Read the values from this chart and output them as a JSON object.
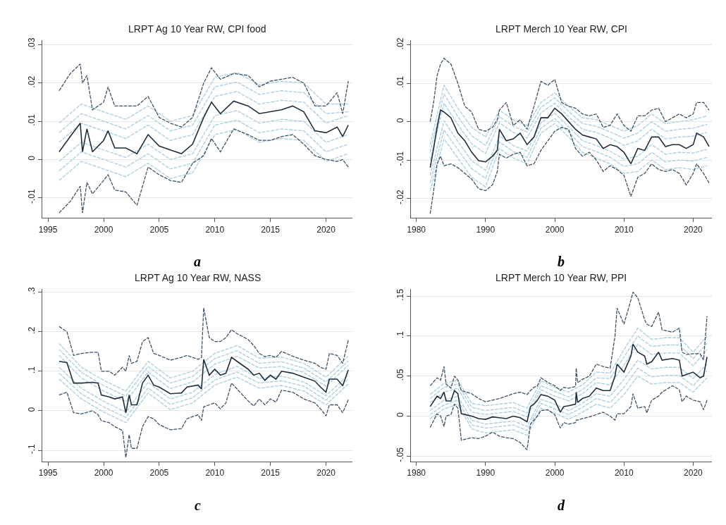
{
  "chart_data": [
    {
      "type": "line",
      "title": "LRPT Ag 10 Year RW, CPI food",
      "annotations": [
        "a"
      ],
      "grid": "y",
      "xlim": [
        1994.5,
        2022.4
      ],
      "xticks": [
        1995,
        2000,
        2005,
        2010,
        2015,
        2020
      ],
      "ylim": [
        -0.0153,
        0.0312
      ],
      "yticks": [
        {
          "value": -0.01,
          "label": "-.01"
        },
        0,
        {
          "value": 0.01,
          "label": ".01"
        },
        {
          "value": 0.02,
          "label": ".02"
        },
        {
          "value": 0.03,
          "label": ".03"
        }
      ],
      "x": [
        1996,
        1997,
        1997.9,
        1998.1,
        1998.5,
        1999,
        2000,
        2000.4,
        2001,
        2002,
        2003,
        2004,
        2005,
        2006,
        2007,
        2008,
        2009,
        2009.7,
        2010.5,
        2011.7,
        2013,
        2014,
        2015,
        2016,
        2017,
        2018,
        2019,
        2020,
        2021,
        2021.5,
        2022
      ],
      "series": [
        {
          "color": "#a7cde0",
          "line_style": "dashed",
          "x": [
            1996,
            1998,
            2000,
            2002,
            2004,
            2006,
            2008,
            2010,
            2012,
            2014,
            2016,
            2018,
            2020,
            2022
          ],
          "values": [
            0.0095,
            0.0145,
            0.0125,
            0.0105,
            0.014,
            0.01,
            0.0115,
            0.0215,
            0.0228,
            0.0195,
            0.0205,
            0.02,
            0.0145,
            0.0145
          ]
        },
        {
          "color": "#a7cde0",
          "line_style": "dashed",
          "x": [
            1996,
            1998,
            2000,
            2002,
            2004,
            2006,
            2008,
            2010,
            2012,
            2014,
            2016,
            2018,
            2020,
            2022
          ],
          "values": [
            0.007,
            0.012,
            0.01,
            0.008,
            0.0115,
            0.0075,
            0.009,
            0.019,
            0.0203,
            0.017,
            0.018,
            0.0175,
            0.012,
            0.0125
          ]
        },
        {
          "color": "#a7cde0",
          "line_style": "dashed",
          "x": [
            1996,
            1998,
            2000,
            2002,
            2004,
            2006,
            2008,
            2010,
            2012,
            2014,
            2016,
            2018,
            2020,
            2022
          ],
          "values": [
            0.0045,
            0.0095,
            0.0075,
            0.0055,
            0.009,
            0.005,
            0.0065,
            0.0165,
            0.0178,
            0.0145,
            0.0155,
            0.015,
            0.0095,
            0.0115
          ]
        },
        {
          "color": "#a7cde0",
          "line_style": "dashed",
          "x": [
            1996,
            1998,
            2000,
            2002,
            2004,
            2006,
            2008,
            2010,
            2012,
            2014,
            2016,
            2018,
            2020,
            2022
          ],
          "values": [
            -0.0005,
            0.0045,
            0.0025,
            0.0005,
            0.004,
            0,
            0.0015,
            0.0115,
            0.0128,
            0.0095,
            0.0105,
            0.01,
            0.0045,
            0.0065
          ]
        },
        {
          "color": "#a7cde0",
          "line_style": "dashed",
          "x": [
            1996,
            1998,
            2000,
            2002,
            2004,
            2006,
            2008,
            2010,
            2012,
            2014,
            2016,
            2018,
            2020,
            2022
          ],
          "values": [
            -0.003,
            0.002,
            0,
            -0.002,
            0.0015,
            -0.0025,
            -0.001,
            0.009,
            0.0103,
            0.007,
            0.008,
            0.0075,
            0.002,
            0.004
          ]
        },
        {
          "color": "#a7cde0",
          "line_style": "dashed",
          "x": [
            1996,
            1998,
            2000,
            2002,
            2004,
            2006,
            2008,
            2010,
            2012,
            2014,
            2016,
            2018,
            2020,
            2022
          ],
          "values": [
            -0.0055,
            -0.0005,
            -0.0025,
            -0.0045,
            -0.001,
            -0.005,
            -0.0035,
            0.0065,
            0.0078,
            0.0045,
            0.0055,
            0.005,
            -0.0005,
            0.0015
          ]
        },
        {
          "color": "#3d5266",
          "line_style": "dashed",
          "values": [
            0.018,
            0.0225,
            0.025,
            0.02,
            0.022,
            0.013,
            0.015,
            0.019,
            0.014,
            0.014,
            0.014,
            0.0165,
            0.011,
            0.0095,
            0.0085,
            0.011,
            0.02,
            0.024,
            0.021,
            0.0225,
            0.022,
            0.019,
            0.0205,
            0.021,
            0.0215,
            0.02,
            0.014,
            0.014,
            0.0175,
            0.012,
            0.0205
          ]
        },
        {
          "color": "#3d5266",
          "line_style": "dashed",
          "values": [
            -0.014,
            -0.011,
            -0.007,
            -0.014,
            -0.006,
            -0.009,
            -0.0055,
            -0.004,
            -0.008,
            -0.0085,
            -0.012,
            -0.002,
            -0.004,
            -0.0055,
            -0.006,
            -0.001,
            0.001,
            0.0055,
            0.002,
            0.008,
            0.0065,
            0.005,
            0.005,
            0.006,
            0.0065,
            0.004,
            0.001,
            0,
            -0.0005,
            0,
            -0.002
          ]
        },
        {
          "color": "#1f2d3d",
          "line_style": "solid",
          "values": [
            0.002,
            0.006,
            0.0095,
            0.002,
            0.008,
            0.002,
            0.005,
            0.0075,
            0.003,
            0.003,
            0.0015,
            0.0065,
            0.0035,
            0.0025,
            0.0015,
            0.004,
            0.011,
            0.015,
            0.012,
            0.0153,
            0.014,
            0.012,
            0.0125,
            0.013,
            0.014,
            0.0125,
            0.0075,
            0.007,
            0.0085,
            0.006,
            0.009
          ]
        }
      ]
    },
    {
      "type": "line",
      "title": "LRPT Merch 10 Year RW, CPI",
      "annotations": [
        "b"
      ],
      "grid": "y",
      "xlim": [
        1979.2,
        2022.7
      ],
      "xticks": [
        1980,
        1990,
        2000,
        2010,
        2020
      ],
      "ylim": [
        -0.0251,
        0.0212
      ],
      "yticks": [
        {
          "value": -0.02,
          "label": "-.02"
        },
        {
          "value": -0.01,
          "label": "-.01"
        },
        0,
        {
          "value": 0.01,
          "label": ".01"
        },
        {
          "value": 0.02,
          "label": ".02"
        }
      ],
      "x": [
        1982,
        1982.5,
        1983,
        1983.5,
        1984,
        1985,
        1986,
        1987,
        1988,
        1989,
        1990,
        1991,
        1991.7,
        1992,
        1993,
        1994,
        1995,
        1996,
        1997,
        1998,
        1999,
        2000,
        2001,
        2002,
        2003,
        2004,
        2005,
        2006,
        2007,
        2008,
        2009,
        2010,
        2011,
        2012,
        2013,
        2014,
        2015,
        2016,
        2017,
        2018,
        2019,
        2020,
        2020.5,
        2021.5,
        2022.3
      ],
      "series": [
        {
          "color": "#a7cde0",
          "line_style": "dashed",
          "x": [
            1982,
            1984,
            1986,
            1988,
            1990,
            1992,
            1994,
            1996,
            1998,
            2000,
            2002,
            2004,
            2006,
            2008,
            2010,
            2012,
            2014,
            2016,
            2018,
            2020,
            2022
          ],
          "values": [
            -0.006,
            0.0095,
            0.0035,
            -0.0015,
            -0.004,
            0.003,
            0.0005,
            -0.001,
            0.005,
            0.0075,
            0.004,
            0.001,
            0.0005,
            -0.001,
            -0.0025,
            -0.001,
            0.002,
            -0.0005,
            0,
            0.0005,
            0.0015
          ]
        },
        {
          "color": "#a7cde0",
          "line_style": "dashed",
          "x": [
            1982,
            1984,
            1986,
            1988,
            1990,
            1992,
            1994,
            1996,
            1998,
            2000,
            2002,
            2004,
            2006,
            2008,
            2010,
            2012,
            2014,
            2016,
            2018,
            2020,
            2022
          ],
          "values": [
            -0.008,
            0.0072,
            0.0013,
            -0.0037,
            -0.0062,
            0.0013,
            -0.0012,
            -0.0027,
            0.0037,
            0.0062,
            0.0027,
            -0.0005,
            -0.0012,
            -0.0027,
            -0.0043,
            -0.003,
            0,
            -0.0025,
            -0.002,
            -0.0017,
            -0.0007
          ]
        },
        {
          "color": "#a7cde0",
          "line_style": "dashed",
          "x": [
            1982,
            1984,
            1986,
            1988,
            1990,
            1992,
            1994,
            1996,
            1998,
            2000,
            2002,
            2004,
            2006,
            2008,
            2010,
            2012,
            2014,
            2016,
            2018,
            2020,
            2022
          ],
          "values": [
            -0.01,
            0.0048,
            -0.0008,
            -0.0058,
            -0.0083,
            -0.0003,
            -0.0028,
            -0.0043,
            0.0023,
            0.0048,
            0.0013,
            -0.002,
            -0.0028,
            -0.0043,
            -0.0062,
            -0.005,
            -0.002,
            -0.0045,
            -0.004,
            -0.0038,
            -0.0028
          ]
        },
        {
          "color": "#a7cde0",
          "line_style": "dashed",
          "x": [
            1982,
            1984,
            1986,
            1988,
            1990,
            1992,
            1994,
            1996,
            1998,
            2000,
            2002,
            2004,
            2006,
            2008,
            2010,
            2012,
            2014,
            2016,
            2018,
            2020,
            2022
          ],
          "values": [
            -0.014,
            0.0002,
            -0.0052,
            -0.0102,
            -0.0127,
            -0.0037,
            -0.0062,
            -0.0077,
            -0.0003,
            0.0022,
            -0.0013,
            -0.005,
            -0.0062,
            -0.0077,
            -0.0098,
            -0.009,
            -0.006,
            -0.0085,
            -0.008,
            -0.0082,
            -0.0072
          ]
        },
        {
          "color": "#a7cde0",
          "line_style": "dashed",
          "x": [
            1982,
            1984,
            1986,
            1988,
            1990,
            1992,
            1994,
            1996,
            1998,
            2000,
            2002,
            2004,
            2006,
            2008,
            2010,
            2012,
            2014,
            2016,
            2018,
            2020,
            2022
          ],
          "values": [
            -0.016,
            -0.0022,
            -0.0073,
            -0.0123,
            -0.0148,
            -0.0053,
            -0.0078,
            -0.0093,
            -0.0017,
            0.0008,
            -0.0027,
            -0.0065,
            -0.0078,
            -0.0093,
            -0.0117,
            -0.011,
            -0.008,
            -0.0105,
            -0.01,
            -0.0103,
            -0.0093
          ]
        },
        {
          "color": "#a7cde0",
          "line_style": "dashed",
          "x": [
            1982,
            1984,
            1986,
            1988,
            1990,
            1992,
            1994,
            1996,
            1998,
            2000,
            2002,
            2004,
            2006,
            2008,
            2010,
            2012,
            2014,
            2016,
            2018,
            2020,
            2022
          ],
          "values": [
            -0.018,
            -0.0045,
            -0.0095,
            -0.0145,
            -0.017,
            -0.007,
            -0.0095,
            -0.011,
            -0.003,
            -0.0005,
            -0.004,
            -0.008,
            -0.0095,
            -0.011,
            -0.0135,
            -0.013,
            -0.01,
            -0.0125,
            -0.012,
            -0.0125,
            -0.0115
          ]
        },
        {
          "color": "#3d5266",
          "line_style": "dashed",
          "values": [
            0,
            0.005,
            0.012,
            0.015,
            0.0165,
            0.015,
            0.01,
            0.004,
            0.0025,
            -0.002,
            -0.0025,
            -0.0015,
            0.0005,
            0.003,
            0.005,
            -0.001,
            0.0005,
            -0.002,
            0.004,
            0.0105,
            0.0095,
            0.011,
            0.005,
            0.004,
            0.0035,
            0.002,
            0.0015,
            0.002,
            -0.0015,
            -0.001,
            0.002,
            -0.001,
            -0.0025,
            0.0015,
            0.0015,
            0.003,
            0.0035,
            0,
            0.001,
            0.002,
            0.001,
            0.002,
            0.005,
            0.005,
            0.003
          ]
        },
        {
          "color": "#3d5266",
          "line_style": "dashed",
          "values": [
            -0.024,
            -0.018,
            -0.011,
            -0.009,
            -0.0115,
            -0.011,
            -0.012,
            -0.0135,
            -0.015,
            -0.0175,
            -0.018,
            -0.0165,
            -0.013,
            -0.0085,
            -0.0095,
            -0.0085,
            -0.008,
            -0.0115,
            -0.011,
            -0.0075,
            -0.005,
            -0.0025,
            -0.0015,
            -0.002,
            -0.007,
            -0.009,
            -0.008,
            -0.01,
            -0.013,
            -0.0115,
            -0.0125,
            -0.014,
            -0.0195,
            -0.0145,
            -0.0135,
            -0.011,
            -0.0125,
            -0.013,
            -0.0125,
            -0.0135,
            -0.0165,
            -0.0135,
            -0.011,
            -0.0135,
            -0.016
          ]
        },
        {
          "color": "#1f2d3d",
          "line_style": "solid",
          "values": [
            -0.012,
            -0.007,
            -0.0015,
            0.003,
            0.0025,
            0.001,
            -0.003,
            -0.005,
            -0.008,
            -0.0102,
            -0.0105,
            -0.009,
            -0.0075,
            -0.002,
            -0.005,
            -0.0045,
            -0.003,
            -0.006,
            -0.004,
            0.001,
            0.001,
            0.0035,
            0.002,
            0,
            -0.002,
            -0.0035,
            -0.004,
            -0.0045,
            -0.007,
            -0.006,
            -0.0065,
            -0.008,
            -0.011,
            -0.007,
            -0.0075,
            -0.004,
            -0.004,
            -0.0065,
            -0.006,
            -0.006,
            -0.007,
            -0.006,
            -0.003,
            -0.004,
            -0.0065
          ]
        }
      ]
    },
    {
      "type": "line",
      "title": "LRPT Ag 10 Year RW, NASS",
      "annotations": [
        "c"
      ],
      "grid": "y",
      "xlim": [
        1994.5,
        2022.4
      ],
      "xticks": [
        1995,
        2000,
        2005,
        2010,
        2015,
        2020
      ],
      "ylim": [
        -0.128,
        0.308
      ],
      "yticks": [
        {
          "value": -0.1,
          "label": "-.1"
        },
        0,
        {
          "value": 0.1,
          "label": ".1"
        },
        {
          "value": 0.2,
          "label": ".2"
        },
        {
          "value": 0.3,
          "label": ".3"
        }
      ],
      "x": [
        1996,
        1996.7,
        1997.3,
        1998,
        1999,
        1999.5,
        1999.8,
        2000.5,
        2001,
        2001.7,
        2002,
        2002.3,
        2002.5,
        2003,
        2003.5,
        2004,
        2004.5,
        2005,
        2006,
        2007,
        2007.5,
        2008.5,
        2008.8,
        2009,
        2009.5,
        2010,
        2010.5,
        2011,
        2011.5,
        2012,
        2013,
        2013.5,
        2014,
        2014.5,
        2015,
        2015.5,
        2016,
        2017,
        2018,
        2019,
        2019.5,
        2020,
        2020.3,
        2021,
        2021.5,
        2022
      ],
      "series": [
        {
          "color": "#a7cde0",
          "line_style": "dashed",
          "x": [
            1996,
            1998,
            2000,
            2002,
            2004,
            2006,
            2008,
            2010,
            2012,
            2014,
            2016,
            2018,
            2020,
            2022
          ],
          "values": [
            0.17,
            0.11,
            0.077,
            0.05,
            0.125,
            0.083,
            0.1,
            0.145,
            0.165,
            0.133,
            0.136,
            0.12,
            0.085,
            0.138
          ]
        },
        {
          "color": "#a7cde0",
          "line_style": "dashed",
          "x": [
            1996,
            1998,
            2000,
            2002,
            2004,
            2006,
            2008,
            2010,
            2012,
            2014,
            2016,
            2018,
            2020,
            2022
          ],
          "values": [
            0.155,
            0.097,
            0.064,
            0.037,
            0.112,
            0.07,
            0.087,
            0.132,
            0.152,
            0.12,
            0.124,
            0.108,
            0.073,
            0.126
          ]
        },
        {
          "color": "#a7cde0",
          "line_style": "dashed",
          "x": [
            1996,
            1998,
            2000,
            2002,
            2004,
            2006,
            2008,
            2010,
            2012,
            2014,
            2016,
            2018,
            2020,
            2022
          ],
          "values": [
            0.14,
            0.083,
            0.05,
            0.023,
            0.098,
            0.056,
            0.073,
            0.118,
            0.138,
            0.108,
            0.112,
            0.097,
            0.062,
            0.115
          ]
        },
        {
          "color": "#a7cde0",
          "line_style": "dashed",
          "x": [
            1996,
            1998,
            2000,
            2002,
            2004,
            2006,
            2008,
            2010,
            2012,
            2014,
            2016,
            2018,
            2020,
            2022
          ],
          "values": [
            0.11,
            0.057,
            0.024,
            -0.003,
            0.072,
            0.03,
            0.047,
            0.092,
            0.112,
            0.082,
            0.088,
            0.073,
            0.038,
            0.091
          ]
        },
        {
          "color": "#a7cde0",
          "line_style": "dashed",
          "x": [
            1996,
            1998,
            2000,
            2002,
            2004,
            2006,
            2008,
            2010,
            2012,
            2014,
            2016,
            2018,
            2020,
            2022
          ],
          "values": [
            0.095,
            0.043,
            0.01,
            -0.017,
            0.058,
            0.016,
            0.033,
            0.078,
            0.098,
            0.07,
            0.076,
            0.062,
            0.027,
            0.08
          ]
        },
        {
          "color": "#a7cde0",
          "line_style": "dashed",
          "x": [
            1996,
            1998,
            2000,
            2002,
            2004,
            2006,
            2008,
            2010,
            2012,
            2014,
            2016,
            2018,
            2020,
            2022
          ],
          "values": [
            0.08,
            0.03,
            -0.003,
            -0.03,
            0.045,
            0.003,
            0.02,
            0.065,
            0.085,
            0.057,
            0.064,
            0.05,
            0.015,
            0.068
          ]
        },
        {
          "color": "#3d5266",
          "line_style": "dashed",
          "values": [
            0.213,
            0.2,
            0.14,
            0.145,
            0.148,
            0.148,
            0.1,
            0.1,
            0.09,
            0.11,
            0.1,
            0.14,
            0.12,
            0.125,
            0.175,
            0.185,
            0.145,
            0.14,
            0.128,
            0.135,
            0.14,
            0.13,
            0.135,
            0.26,
            0.185,
            0.175,
            0.175,
            0.185,
            0.205,
            0.195,
            0.18,
            0.165,
            0.145,
            0.137,
            0.14,
            0.135,
            0.15,
            0.138,
            0.128,
            0.12,
            0.11,
            0.105,
            0.145,
            0.14,
            0.12,
            0.178
          ]
        },
        {
          "color": "#3d5266",
          "line_style": "dashed",
          "values": [
            0.04,
            0.047,
            -0.005,
            -0.008,
            0,
            -0.01,
            -0.025,
            -0.03,
            -0.04,
            -0.05,
            -0.118,
            -0.06,
            -0.095,
            -0.095,
            -0.04,
            -0.015,
            -0.02,
            -0.035,
            -0.048,
            -0.045,
            -0.02,
            -0.01,
            -0.025,
            0.01,
            0.015,
            0.02,
            0.005,
            0.02,
            0.07,
            0.055,
            0.025,
            0.012,
            0.03,
            0.015,
            0.03,
            0.022,
            0.052,
            0.047,
            0.03,
            0.02,
            0.005,
            -0.013,
            0.015,
            0.015,
            -0.005,
            0.028
          ]
        },
        {
          "color": "#1f2d3d",
          "line_style": "solid",
          "values": [
            0.125,
            0.122,
            0.07,
            0.07,
            0.072,
            0.07,
            0.04,
            0.035,
            0.03,
            0.035,
            -0.005,
            0.04,
            0.015,
            0.015,
            0.07,
            0.09,
            0.065,
            0.06,
            0.043,
            0.045,
            0.06,
            0.065,
            0.055,
            0.13,
            0.09,
            0.105,
            0.09,
            0.095,
            0.135,
            0.125,
            0.105,
            0.09,
            0.095,
            0.077,
            0.09,
            0.08,
            0.1,
            0.095,
            0.085,
            0.075,
            0.06,
            0.047,
            0.08,
            0.08,
            0.063,
            0.103
          ]
        }
      ]
    },
    {
      "type": "line",
      "title": "LRPT Merch 10 Year RW, PPI",
      "annotations": [
        "d"
      ],
      "grid": "y",
      "xlim": [
        1979.2,
        2022.7
      ],
      "xticks": [
        1980,
        1990,
        2000,
        2010,
        2020
      ],
      "ylim": [
        -0.0566,
        0.159
      ],
      "yticks": [
        {
          "value": -0.05,
          "label": "-.05"
        },
        0,
        {
          "value": 0.05,
          "label": ".05"
        },
        {
          "value": 0.1,
          "label": ".1"
        },
        {
          "value": 0.15,
          "label": ".15"
        }
      ],
      "x": [
        1982,
        1983,
        1983.5,
        1984,
        1984.3,
        1985,
        1985.5,
        1986,
        1986.5,
        1988,
        1989,
        1990,
        1991,
        1992,
        1993,
        1994,
        1995,
        1996,
        1996.5,
        1997,
        1997.5,
        1998,
        1999,
        2000,
        2000.8,
        2001.3,
        2002,
        2003,
        2003.1,
        2003.3,
        2004,
        2005,
        2006,
        2007,
        2008,
        2008.7,
        2009,
        2010,
        2011,
        2011.3,
        2012,
        2013,
        2013.3,
        2014,
        2015,
        2015.5,
        2017,
        2018,
        2018.4,
        2019,
        2020,
        2021,
        2021.5,
        2022
      ],
      "series": [
        {
          "color": "#a7cde0",
          "line_style": "dashed",
          "x": [
            1982,
            1984,
            1986,
            1988,
            1990,
            1992,
            1994,
            1996,
            1998,
            2000,
            2002,
            2004,
            2006,
            2008,
            2010,
            2012,
            2014,
            2016,
            2018,
            2020,
            2022
          ],
          "values": [
            0.027,
            0.041,
            0.045,
            0.016,
            0.013,
            0.015,
            0.017,
            0.01,
            0.044,
            0.036,
            0.03,
            0.039,
            0.055,
            0.054,
            0.083,
            0.11,
            0.096,
            0.098,
            0.098,
            0.08,
            0.1
          ]
        },
        {
          "color": "#a7cde0",
          "line_style": "dashed",
          "x": [
            1982,
            1984,
            1986,
            1988,
            1990,
            1992,
            1994,
            1996,
            1998,
            2000,
            2002,
            2004,
            2006,
            2008,
            2010,
            2012,
            2014,
            2016,
            2018,
            2020,
            2022
          ],
          "values": [
            0.022,
            0.036,
            0.04,
            0.011,
            0.007,
            0.009,
            0.011,
            0.004,
            0.038,
            0.031,
            0.024,
            0.033,
            0.048,
            0.047,
            0.074,
            0.1,
            0.087,
            0.089,
            0.089,
            0.072,
            0.091
          ]
        },
        {
          "color": "#a7cde0",
          "line_style": "dashed",
          "x": [
            1982,
            1984,
            1986,
            1988,
            1990,
            1992,
            1994,
            1996,
            1998,
            2000,
            2002,
            2004,
            2006,
            2008,
            2010,
            2012,
            2014,
            2016,
            2018,
            2020,
            2022
          ],
          "values": [
            0.017,
            0.03,
            0.035,
            0.005,
            0.002,
            0.004,
            0.006,
            -0.001,
            0.033,
            0.025,
            0.019,
            0.028,
            0.042,
            0.039,
            0.064,
            0.09,
            0.077,
            0.079,
            0.079,
            0.063,
            0.083
          ]
        },
        {
          "color": "#a7cde0",
          "line_style": "dashed",
          "x": [
            1982,
            1984,
            1986,
            1988,
            1990,
            1992,
            1994,
            1996,
            1998,
            2000,
            2002,
            2004,
            2006,
            2008,
            2010,
            2012,
            2014,
            2016,
            2018,
            2020,
            2022
          ],
          "values": [
            0.007,
            0.02,
            0.025,
            -0.005,
            -0.01,
            -0.008,
            -0.006,
            -0.013,
            0.021,
            0.015,
            0.007,
            0.016,
            0.028,
            0.025,
            0.046,
            0.07,
            0.059,
            0.061,
            0.061,
            0.047,
            0.065
          ]
        },
        {
          "color": "#a7cde0",
          "line_style": "dashed",
          "x": [
            1982,
            1984,
            1986,
            1988,
            1990,
            1992,
            1994,
            1996,
            1998,
            2000,
            2002,
            2004,
            2006,
            2008,
            2010,
            2012,
            2014,
            2016,
            2018,
            2020,
            2022
          ],
          "values": [
            0.002,
            0.014,
            0.02,
            -0.011,
            -0.015,
            -0.013,
            -0.011,
            -0.018,
            0.016,
            0.009,
            0.002,
            0.011,
            0.022,
            0.017,
            0.036,
            0.06,
            0.049,
            0.051,
            0.051,
            0.038,
            0.057
          ]
        },
        {
          "color": "#a7cde0",
          "line_style": "dashed",
          "x": [
            1982,
            1984,
            1986,
            1988,
            1990,
            1992,
            1994,
            1996,
            1998,
            2000,
            2002,
            2004,
            2006,
            2008,
            2010,
            2012,
            2014,
            2016,
            2018,
            2020,
            2022
          ],
          "values": [
            -0.003,
            0.009,
            0.015,
            -0.016,
            -0.021,
            -0.019,
            -0.017,
            -0.024,
            0.01,
            0.004,
            -0.004,
            0.005,
            0.015,
            0.01,
            0.027,
            0.05,
            0.04,
            0.042,
            0.042,
            0.03,
            0.048
          ]
        },
        {
          "color": "#3d5266",
          "line_style": "dashed",
          "values": [
            0.038,
            0.048,
            0.045,
            0.062,
            0.04,
            0.035,
            0.05,
            0.045,
            0.032,
            0.028,
            0.022,
            0.018,
            0.02,
            0.022,
            0.025,
            0.028,
            0.03,
            0.027,
            0.032,
            0.036,
            0.038,
            0.048,
            0.042,
            0.038,
            0.032,
            0.036,
            0.035,
            0.037,
            0.06,
            0.042,
            0.046,
            0.05,
            0.065,
            0.062,
            0.06,
            0.1,
            0.135,
            0.115,
            0.145,
            0.155,
            0.148,
            0.12,
            0.115,
            0.112,
            0.13,
            0.108,
            0.105,
            0.11,
            0.08,
            0.077,
            0.078,
            0.078,
            0.07,
            0.125
          ]
        },
        {
          "color": "#3d5266",
          "line_style": "dashed",
          "values": [
            -0.014,
            0.003,
            0,
            -0.013,
            0,
            0.002,
            0.015,
            0.01,
            -0.03,
            -0.027,
            -0.028,
            -0.025,
            -0.02,
            -0.025,
            -0.027,
            -0.028,
            -0.033,
            -0.042,
            -0.01,
            -0.005,
            0,
            0.007,
            0.008,
            0.002,
            -0.015,
            -0.008,
            -0.01,
            -0.008,
            -0.005,
            -0.005,
            -0.003,
            -0.001,
            0.002,
            0.005,
            0,
            -0.005,
            0.003,
            0.003,
            0.012,
            0.028,
            0.01,
            0.012,
            0.004,
            0.02,
            0.025,
            0.03,
            0.038,
            0.033,
            0.018,
            0.025,
            0.02,
            0.018,
            0.008,
            0.02
          ]
        },
        {
          "color": "#1f2d3d",
          "line_style": "solid",
          "values": [
            0.012,
            0.025,
            0.022,
            0.03,
            0.019,
            0.019,
            0.032,
            0.028,
            0.003,
            0,
            -0.003,
            -0.004,
            -0.001,
            -0.002,
            -0.003,
            0,
            -0.002,
            -0.007,
            0.012,
            0.015,
            0.02,
            0.027,
            0.025,
            0.02,
            0.005,
            0.012,
            0.013,
            0.015,
            0.03,
            0.017,
            0.022,
            0.025,
            0.035,
            0.032,
            0.032,
            0.05,
            0.065,
            0.055,
            0.075,
            0.09,
            0.08,
            0.075,
            0.065,
            0.068,
            0.08,
            0.07,
            0.072,
            0.07,
            0.05,
            0.052,
            0.055,
            0.048,
            0.05,
            0.074
          ]
        }
      ]
    }
  ]
}
